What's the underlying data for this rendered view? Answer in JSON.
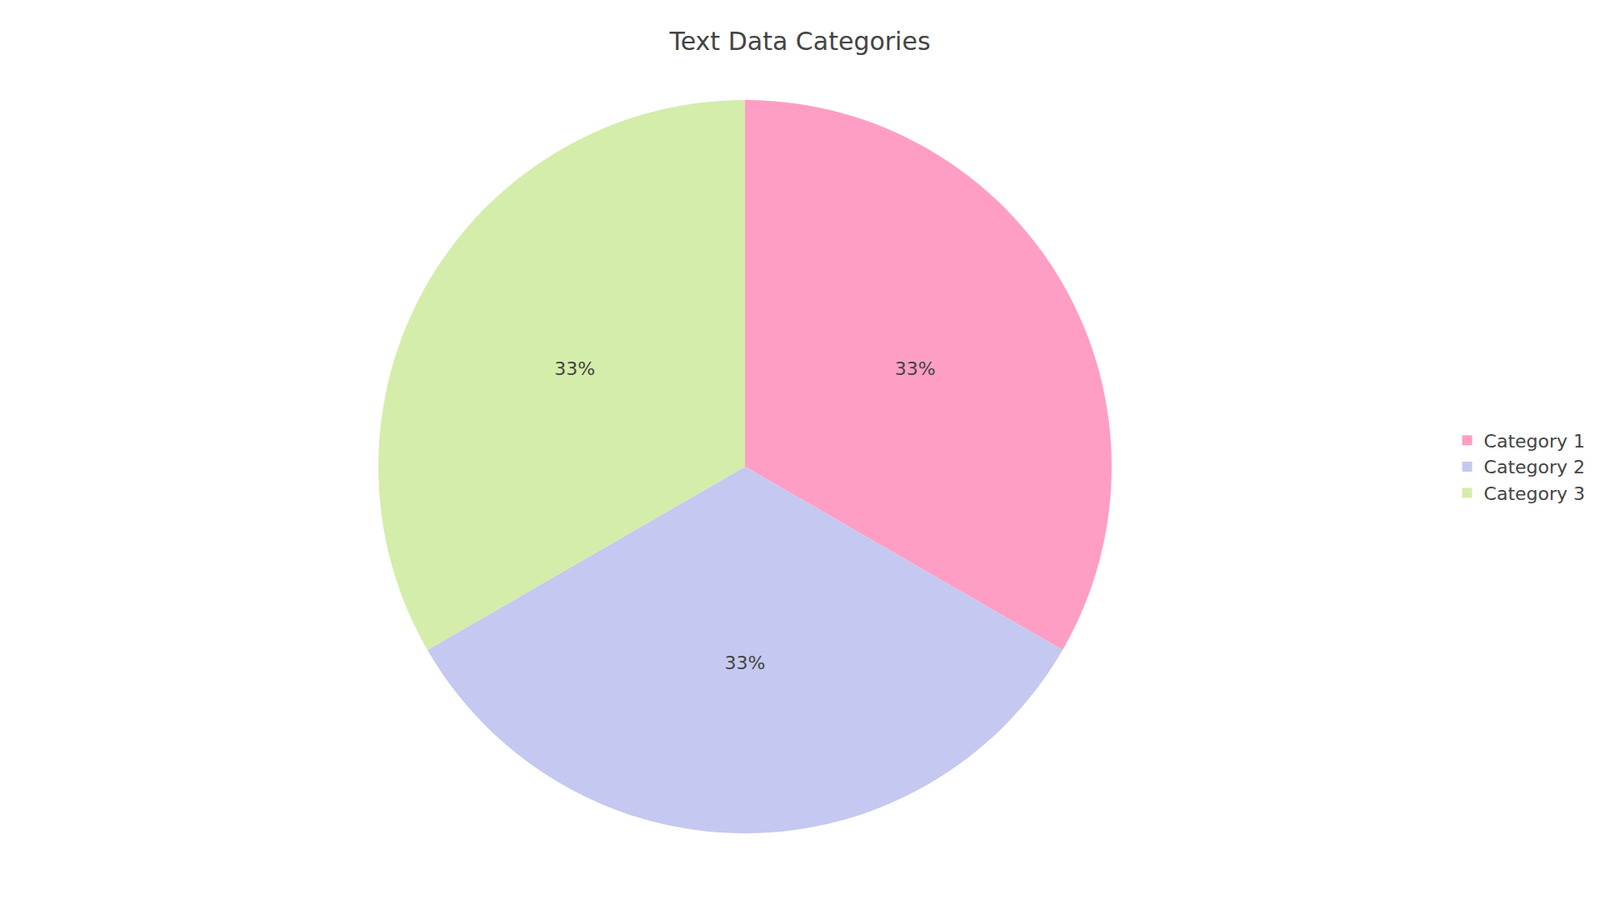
{
  "chart_data": {
    "type": "pie",
    "title": "Text Data Categories",
    "categories": [
      "Category 1",
      "Category 2",
      "Category 3"
    ],
    "values": [
      33,
      33,
      33
    ],
    "value_labels": [
      "33%",
      "33%",
      "33%"
    ],
    "colors": [
      "#FF9EC4",
      "#C5C8F0",
      "#D4EDAA"
    ],
    "data_labels": true,
    "legend": "right"
  }
}
